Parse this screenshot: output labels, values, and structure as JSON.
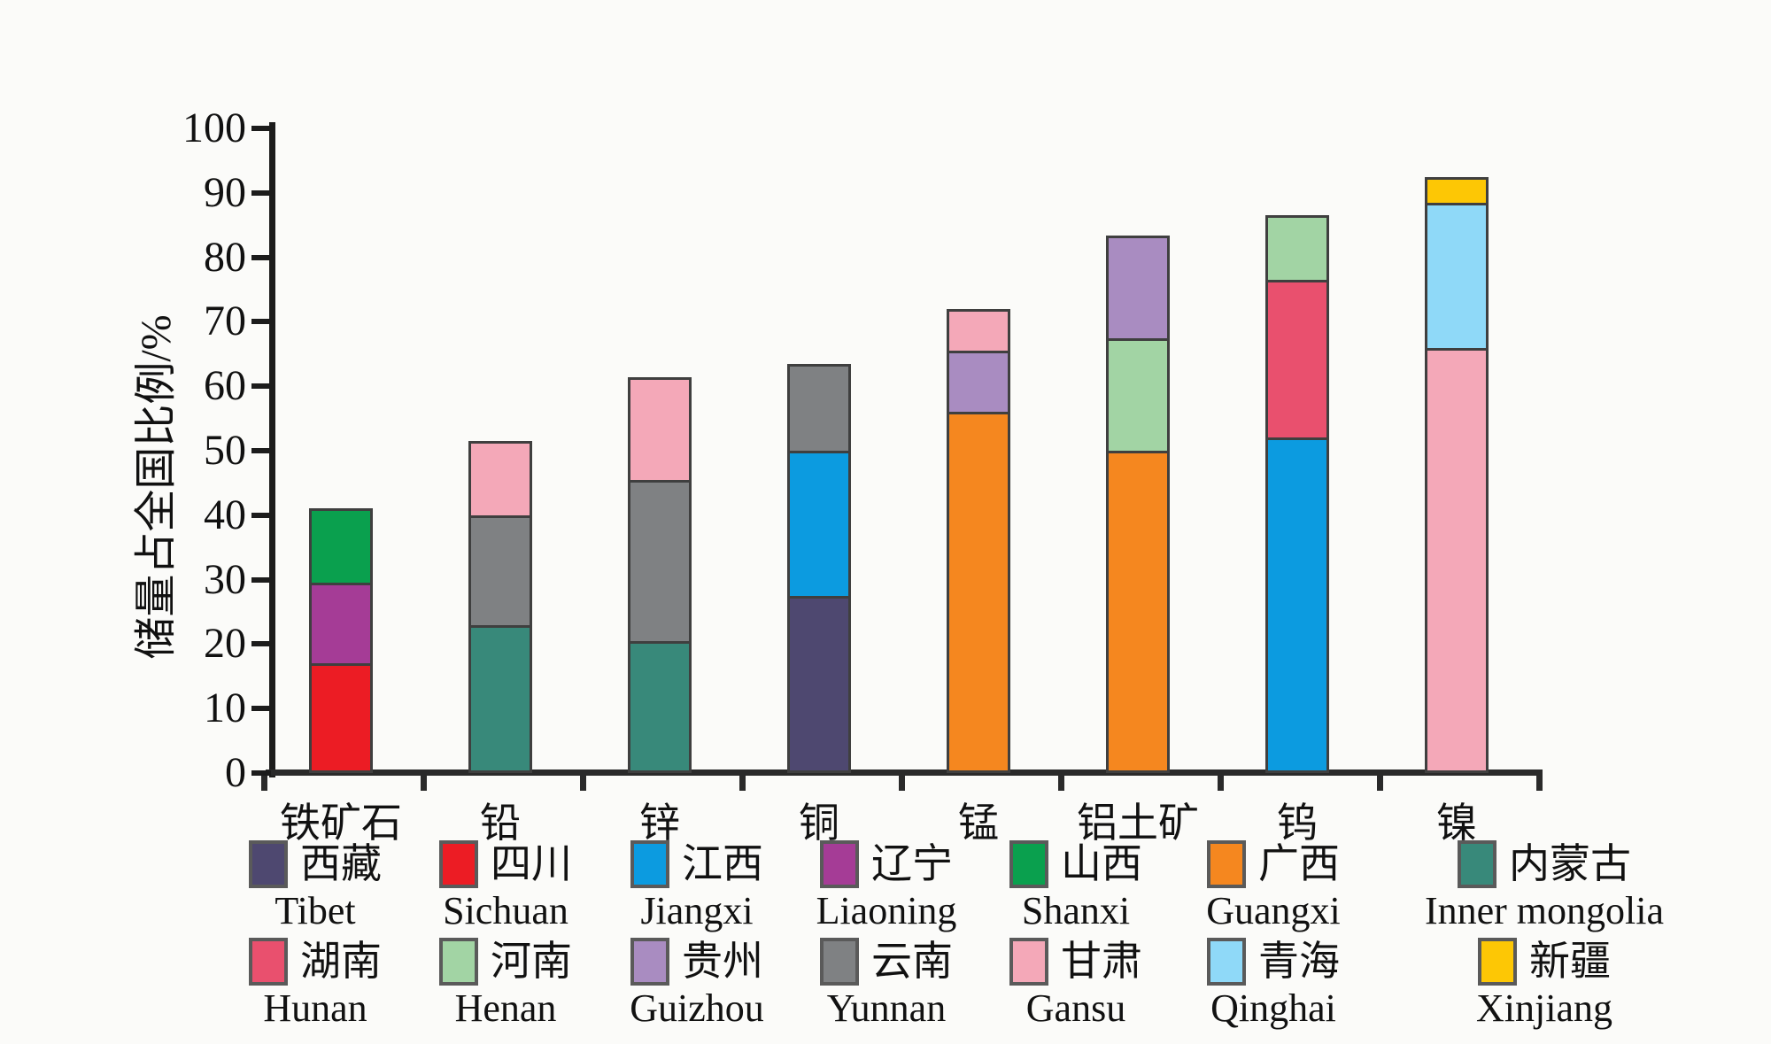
{
  "chart_data": {
    "type": "bar",
    "subtype": "stacked-vertical",
    "title": "",
    "ylabel": "储量占全国比例/%",
    "xlabel": "",
    "ylim": [
      0,
      100
    ],
    "y_ticks": [
      0,
      10,
      20,
      30,
      40,
      50,
      60,
      70,
      80,
      90,
      100
    ],
    "grid": "off",
    "legend_position": "bottom",
    "categories": [
      "铁矿石",
      "铅",
      "锌",
      "铜",
      "锰",
      "铝土矿",
      "钨",
      "镍"
    ],
    "provinces": {
      "西藏": {
        "en": "Tibet",
        "color": "#4e4870"
      },
      "四川": {
        "en": "Sichuan",
        "color": "#ec1c24"
      },
      "江西": {
        "en": "Jiangxi",
        "color": "#0c9be0"
      },
      "辽宁": {
        "en": "Liaoning",
        "color": "#a53c96"
      },
      "山西": {
        "en": "Shanxi",
        "color": "#0aa04e"
      },
      "广西": {
        "en": "Guangxi",
        "color": "#f5871f"
      },
      "内蒙古": {
        "en": "Inner mongolia",
        "color": "#38897a"
      },
      "湖南": {
        "en": "Hunan",
        "color": "#e9506e"
      },
      "河南": {
        "en": "Henan",
        "color": "#a2d4a4"
      },
      "贵州": {
        "en": "Guizhou",
        "color": "#a98cc1"
      },
      "云南": {
        "en": "Yunnan",
        "color": "#7f8183"
      },
      "甘肃": {
        "en": "Gansu",
        "color": "#f4a8b8"
      },
      "青海": {
        "en": "Qinghai",
        "color": "#8fd9f8"
      },
      "新疆": {
        "en": "Xinjiang",
        "color": "#fdc705"
      }
    },
    "bars": [
      {
        "category": "铁矿石",
        "total": 41,
        "segments": [
          {
            "province": "四川",
            "value": 17
          },
          {
            "province": "辽宁",
            "value": 12.5
          },
          {
            "province": "山西",
            "value": 11.5
          }
        ]
      },
      {
        "category": "铅",
        "total": 51.5,
        "segments": [
          {
            "province": "内蒙古",
            "value": 23
          },
          {
            "province": "云南",
            "value": 17
          },
          {
            "province": "甘肃",
            "value": 11.5
          }
        ]
      },
      {
        "category": "锌",
        "total": 61.5,
        "segments": [
          {
            "province": "内蒙古",
            "value": 20.5
          },
          {
            "province": "云南",
            "value": 25
          },
          {
            "province": "甘肃",
            "value": 16
          }
        ]
      },
      {
        "category": "铜",
        "total": 63.5,
        "segments": [
          {
            "province": "西藏",
            "value": 27.5
          },
          {
            "province": "江西",
            "value": 22.5
          },
          {
            "province": "云南",
            "value": 13.5
          }
        ]
      },
      {
        "category": "锰",
        "total": 72,
        "segments": [
          {
            "province": "广西",
            "value": 56
          },
          {
            "province": "贵州",
            "value": 9.5
          },
          {
            "province": "甘肃",
            "value": 6.5
          }
        ]
      },
      {
        "category": "铝土矿",
        "total": 83.5,
        "segments": [
          {
            "province": "广西",
            "value": 50
          },
          {
            "province": "河南",
            "value": 17.5
          },
          {
            "province": "贵州",
            "value": 16
          }
        ]
      },
      {
        "category": "钨",
        "total": 86.5,
        "segments": [
          {
            "province": "江西",
            "value": 52
          },
          {
            "province": "湖南",
            "value": 24.5
          },
          {
            "province": "河南",
            "value": 10
          }
        ]
      },
      {
        "category": "镍",
        "total": 92.5,
        "segments": [
          {
            "province": "甘肃",
            "value": 66
          },
          {
            "province": "青海",
            "value": 22.5
          },
          {
            "province": "新疆",
            "value": 4
          }
        ]
      }
    ],
    "legend_rows": [
      [
        "西藏",
        "四川",
        "江西",
        "辽宁",
        "山西",
        "广西",
        "内蒙古"
      ],
      [
        "湖南",
        "河南",
        "贵州",
        "云南",
        "甘肃",
        "青海",
        "新疆"
      ]
    ]
  }
}
